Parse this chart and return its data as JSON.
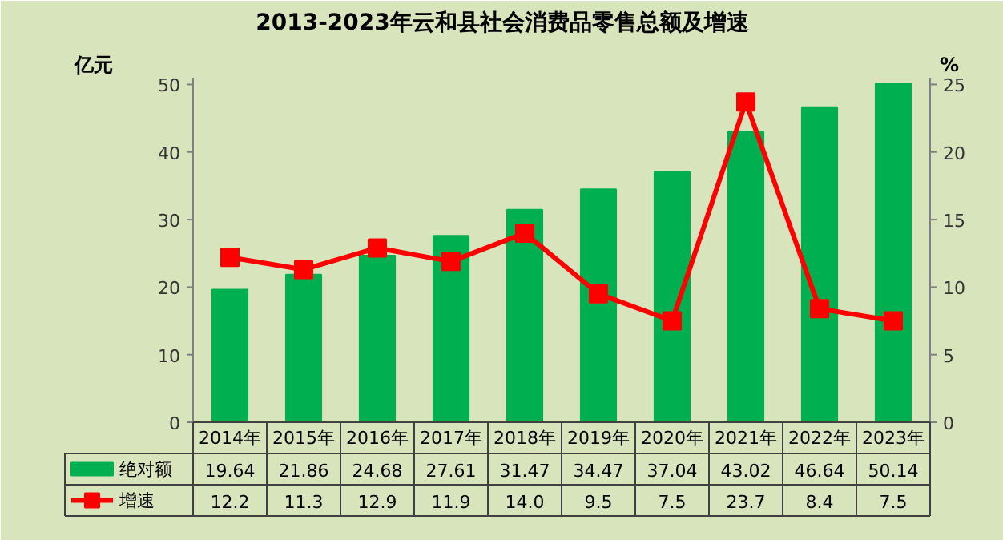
{
  "chart_data": {
    "type": "bar",
    "title": "2013-2023年云和县社会消费品零售总额及增速",
    "ylabel": "亿元",
    "y2label": "%",
    "categories": [
      "2014年",
      "2015年",
      "2016年",
      "2017年",
      "2018年",
      "2019年",
      "2020年",
      "2021年",
      "2022年",
      "2023年"
    ],
    "series": [
      {
        "name": "绝对额",
        "color": "#00b050",
        "values": [
          19.64,
          21.86,
          24.68,
          27.61,
          31.47,
          34.47,
          37.04,
          43.02,
          46.64,
          50.14
        ],
        "value_labels": [
          "19.64",
          "21.86",
          "24.68",
          "27.61",
          "31.47",
          "34.47",
          "37.04",
          "43.02",
          "46.64",
          "50.14"
        ]
      },
      {
        "name": "增速",
        "type": "line",
        "axis": "y2",
        "color": "#ff0000",
        "marker": "square",
        "values": [
          12.2,
          11.3,
          12.9,
          11.9,
          14.0,
          9.5,
          7.5,
          23.7,
          8.4,
          7.5
        ],
        "value_labels": [
          "12.2",
          "11.3",
          "12.9",
          "11.9",
          "14.0",
          "9.5",
          "7.5",
          "23.7",
          "8.4",
          "7.5"
        ]
      }
    ],
    "ylim": [
      0,
      51
    ],
    "yticks": [
      0,
      10,
      20,
      30,
      40,
      50
    ],
    "y2lim": [
      0,
      25.5
    ],
    "y2ticks": [
      0,
      5,
      10,
      15,
      20,
      25
    ],
    "grid": false,
    "legend": "bottom"
  }
}
